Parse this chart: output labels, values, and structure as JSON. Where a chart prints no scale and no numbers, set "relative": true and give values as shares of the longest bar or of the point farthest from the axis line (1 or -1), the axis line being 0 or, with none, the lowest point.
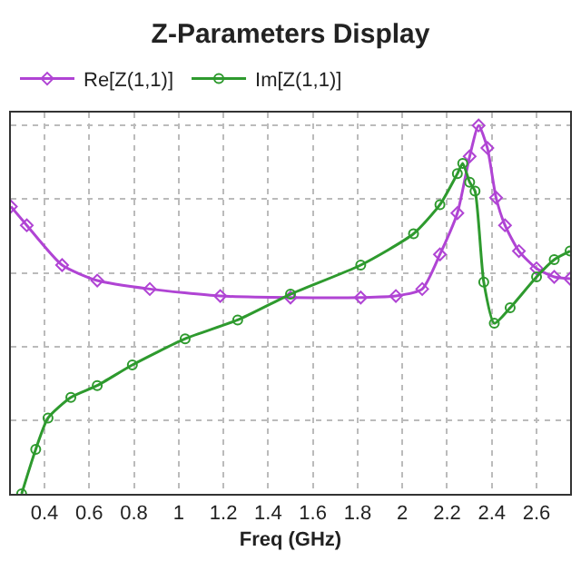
{
  "chart_data": {
    "type": "line",
    "title": "Z-Parameters Display",
    "xlabel": "Freq (GHz)",
    "relative": true,
    "xlim": [
      0.25,
      2.75
    ],
    "xticks": [
      0.4,
      0.6,
      0.8,
      1,
      1.2,
      1.4,
      1.6,
      1.8,
      2,
      2.2,
      2.4,
      2.6
    ],
    "grid": true,
    "legend": "top left",
    "line_style": "solid",
    "series": [
      {
        "name": "Re[Z(1,1)]",
        "color": "#b044d4",
        "marker": "diamond",
        "x": [
          0.25,
          0.321,
          0.479,
          0.636,
          0.871,
          1.186,
          1.5,
          1.814,
          1.971,
          2.089,
          2.168,
          2.246,
          2.301,
          2.341,
          2.38,
          2.419,
          2.459,
          2.521,
          2.6,
          2.679,
          2.75
        ],
        "values": [
          0.78,
          0.729,
          0.621,
          0.579,
          0.556,
          0.537,
          0.533,
          0.533,
          0.537,
          0.556,
          0.65,
          0.762,
          0.916,
          1,
          0.939,
          0.804,
          0.729,
          0.659,
          0.612,
          0.589,
          0.584
        ]
      },
      {
        "name": "Im[Z(1,1)]",
        "color": "#2e9a2e",
        "marker": "circle",
        "x": [
          0.298,
          0.361,
          0.416,
          0.518,
          0.636,
          0.793,
          1.029,
          1.264,
          1.5,
          1.814,
          2.05,
          2.168,
          2.246,
          2.27,
          2.301,
          2.325,
          2.364,
          2.411,
          2.482,
          2.6,
          2.679,
          2.75
        ],
        "values": [
          0,
          0.121,
          0.206,
          0.262,
          0.294,
          0.35,
          0.421,
          0.472,
          0.542,
          0.621,
          0.706,
          0.785,
          0.869,
          0.897,
          0.846,
          0.822,
          0.575,
          0.463,
          0.505,
          0.589,
          0.636,
          0.659
        ]
      }
    ]
  }
}
